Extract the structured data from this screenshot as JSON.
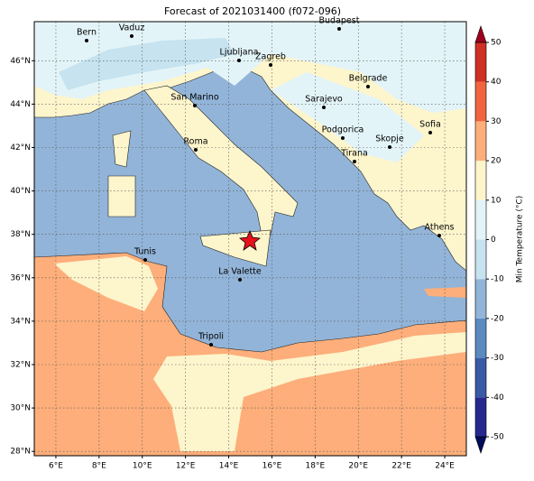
{
  "chart_data": {
    "type": "map",
    "title": "Forecast of 2021031400 (f072-096)",
    "xlim": [
      5,
      25
    ],
    "ylim": [
      27.8,
      47.8
    ],
    "xticks": [
      {
        "value": 6,
        "label": "6°E"
      },
      {
        "value": 8,
        "label": "8°E"
      },
      {
        "value": 10,
        "label": "10°E"
      },
      {
        "value": 12,
        "label": "12°E"
      },
      {
        "value": 14,
        "label": "14°E"
      },
      {
        "value": 16,
        "label": "16°E"
      },
      {
        "value": 18,
        "label": "18°E"
      },
      {
        "value": 20,
        "label": "20°E"
      },
      {
        "value": 22,
        "label": "22°E"
      },
      {
        "value": 24,
        "label": "24°E"
      }
    ],
    "yticks": [
      {
        "value": 28,
        "label": "28°N"
      },
      {
        "value": 30,
        "label": "30°N"
      },
      {
        "value": 32,
        "label": "32°N"
      },
      {
        "value": 34,
        "label": "34°N"
      },
      {
        "value": 36,
        "label": "36°N"
      },
      {
        "value": 38,
        "label": "38°N"
      },
      {
        "value": 40,
        "label": "40°N"
      },
      {
        "value": 42,
        "label": "42°N"
      },
      {
        "value": 44,
        "label": "44°N"
      },
      {
        "value": 46,
        "label": "46°N"
      }
    ],
    "grid": true,
    "cities": [
      "Bern",
      "Vaduz",
      "Budapest",
      "Ljubljana",
      "Zagreb",
      "Belgrade",
      "San Marino",
      "Sarajevo",
      "Sofia",
      "Podgorica",
      "Skopje",
      "Roma",
      "Tirana",
      "Athens",
      "Tunis",
      "La Valette",
      "Tripoli"
    ],
    "colorbar": {
      "label": "Min Temperature (°C)",
      "lim": [
        -50,
        50
      ],
      "ticks": [
        -50,
        -40,
        -30,
        -20,
        -10,
        0,
        10,
        20,
        30,
        40,
        50
      ],
      "colors": [
        "#27288f",
        "#3a5aa6",
        "#5a8ac0",
        "#91b4d8",
        "#c6e3ef",
        "#e3f4f8",
        "#fdf5cc",
        "#fdae7a",
        "#f0653f",
        "#d02f25"
      ],
      "extend_colors": [
        "#000c5c",
        "#a00020"
      ]
    }
  }
}
